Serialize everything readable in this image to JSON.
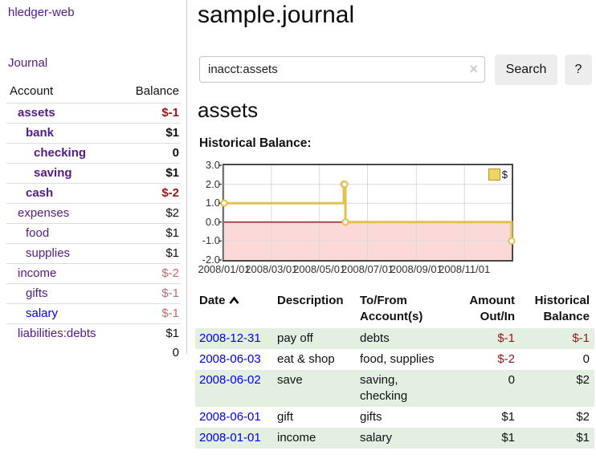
{
  "brand": "hledger-web",
  "title": "sample.journal",
  "nav": [
    {
      "label": "Journal"
    }
  ],
  "accounts": {
    "headers": {
      "account": "Account",
      "balance": "Balance"
    },
    "rows": [
      {
        "name": "assets",
        "balance": "$-1",
        "level": 1,
        "in_account": true
      },
      {
        "name": "bank",
        "balance": "$1",
        "level": 2,
        "in_account": true
      },
      {
        "name": "checking",
        "balance": "0",
        "level": 3,
        "in_account": true
      },
      {
        "name": "saving",
        "balance": "$1",
        "level": 3,
        "in_account": true
      },
      {
        "name": "cash",
        "balance": "$-2",
        "level": 2,
        "in_account": true
      },
      {
        "name": "expenses",
        "balance": "$2",
        "level": 1,
        "in_account": false
      },
      {
        "name": "food",
        "balance": "$1",
        "level": 2,
        "in_account": false
      },
      {
        "name": "supplies",
        "balance": "$1",
        "level": 2,
        "in_account": false
      },
      {
        "name": "income",
        "balance": "$-2",
        "level": 1,
        "in_account": false
      },
      {
        "name": "gifts",
        "balance": "$-1",
        "level": 2,
        "in_account": false
      },
      {
        "name": "salary",
        "balance": "$-1",
        "level": 2,
        "in_account": false,
        "unvisited": true
      },
      {
        "name": "liabilities:debts",
        "balance": "$1",
        "level": 1,
        "in_account": false
      }
    ],
    "total": "0"
  },
  "search": {
    "value": "inacct:assets",
    "clear_icon": "×",
    "button_label": "Search",
    "help_label": "?"
  },
  "account_view": {
    "title": "assets",
    "chart_label": "Historical Balance:"
  },
  "chart_data": {
    "type": "line",
    "step": true,
    "title": "Historical Balance:",
    "series": [
      {
        "name": "$",
        "points": [
          [
            "2008-01-01",
            1
          ],
          [
            "2008-06-01",
            2
          ],
          [
            "2008-06-02",
            2
          ],
          [
            "2008-06-03",
            0
          ],
          [
            "2008-12-31",
            -1
          ]
        ]
      }
    ],
    "xlim": [
      "2008-01-01",
      "2008-12-31"
    ],
    "ylim": [
      -2,
      3
    ],
    "x_ticks": [
      "2008/01/01",
      "2008/03/01",
      "2008/05/01",
      "2008/07/01",
      "2008/09/01",
      "2008/11/01"
    ],
    "y_ticks": [
      3.0,
      2.0,
      1.0,
      0.0,
      -1.0,
      -2.0
    ],
    "legend": {
      "label": "$",
      "position": "top-right"
    },
    "grid": true
  },
  "register": {
    "headers": {
      "date": "Date",
      "description": "Description",
      "to_from": "To/From Account(s)",
      "amount": "Amount Out/In",
      "balance": "Historical Balance"
    },
    "rows": [
      {
        "date": "2008-12-31",
        "description": "pay off",
        "to_from": "debts",
        "amount": "$-1",
        "balance": "$-1"
      },
      {
        "date": "2008-06-03",
        "description": "eat & shop",
        "to_from": "food, supplies",
        "amount": "$-2",
        "balance": "0"
      },
      {
        "date": "2008-06-02",
        "description": "save",
        "to_from": "saving, checking",
        "amount": "0",
        "balance": "$2"
      },
      {
        "date": "2008-06-01",
        "description": "gift",
        "to_from": "gifts",
        "amount": "$1",
        "balance": "$2"
      },
      {
        "date": "2008-01-01",
        "description": "income",
        "to_from": "salary",
        "amount": "$1",
        "balance": "$1"
      }
    ]
  },
  "colors": {
    "link_purple": "#551A8B",
    "link_blue": "#0000EE",
    "negative_strong": "#961616",
    "negative_soft": "#C06A6A",
    "row_stripe_green": "#E2EFE1",
    "chart_line_gold": "#E3C050",
    "legend_swatch_fill": "#F0D466",
    "legend_swatch_border": "#B6952E",
    "chart_negative_fill": "#FBD9D9",
    "chart_zero_line": "#8B1313",
    "chart_grid": "#D9D9D9",
    "chart_frame": "#484848"
  }
}
